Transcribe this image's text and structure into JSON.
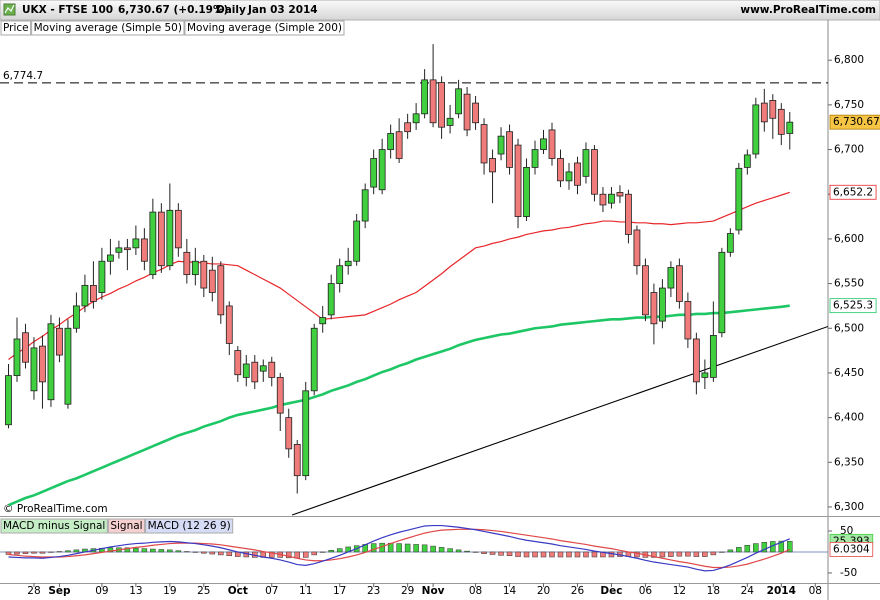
{
  "chart_data": {
    "type": "candlestick",
    "header": {
      "symbol": "UKX - FTSE 100",
      "price": "6,730.67 (+0.19%)",
      "period": "Daily",
      "date": "Jan 03 2014",
      "site": "www.ProRealTime.com"
    },
    "watermark": "© ProRealTime.com",
    "categories": [
      null,
      null,
      null,
      "28",
      null,
      null,
      "Sep",
      null,
      null,
      null,
      null,
      "09",
      null,
      null,
      null,
      "13",
      null,
      null,
      null,
      "19",
      null,
      null,
      null,
      "25",
      null,
      null,
      null,
      "Oct",
      null,
      null,
      null,
      "07",
      null,
      null,
      null,
      "11",
      null,
      null,
      null,
      "17",
      null,
      null,
      null,
      "23",
      null,
      null,
      null,
      "29",
      null,
      null,
      "Nov",
      null,
      null,
      null,
      null,
      "08",
      null,
      null,
      null,
      "14",
      null,
      null,
      null,
      "20",
      null,
      null,
      null,
      "26",
      null,
      null,
      null,
      "Dec",
      null,
      null,
      null,
      "06",
      null,
      null,
      null,
      "12",
      null,
      null,
      null,
      "18",
      null,
      null,
      null,
      "24",
      null,
      null,
      null,
      "2014",
      null,
      null,
      null,
      "08"
    ],
    "xlim": [
      -1,
      96.5
    ],
    "ylim": [
      6291,
      6845
    ],
    "yticks": [
      {
        "value": 6300,
        "label": "6,300"
      },
      {
        "value": 6350,
        "label": "6,350"
      },
      {
        "value": 6400,
        "label": "6,400"
      },
      {
        "value": 6450,
        "label": "6,450"
      },
      {
        "value": 6500,
        "label": "6,500"
      },
      {
        "value": 6550,
        "label": "6,550"
      },
      {
        "value": 6600,
        "label": "6,600"
      },
      {
        "value": 6650,
        "label": "6,650"
      },
      {
        "value": 6700,
        "label": "6,700"
      },
      {
        "value": 6750,
        "label": "6,750"
      },
      {
        "value": 6800,
        "label": "6,800"
      }
    ],
    "price": {
      "name": "Price",
      "up_color": "#3fcf3f",
      "down_color": "#ef7b7b",
      "last_label": "6,730.67",
      "open": [
        6392,
        6447,
        6495,
        6430,
        6480,
        6420,
        6500,
        6415,
        6500,
        6525,
        6548,
        6540,
        6575,
        6585,
        6590,
        6590,
        6600,
        6560,
        6630,
        6570,
        6632,
        6585,
        6560,
        6575,
        6565,
        6570,
        6525,
        6475,
        6445,
        6462,
        6452,
        6462,
        6445,
        6400,
        6370,
        6335,
        6430,
        6505,
        6515,
        6550,
        6570,
        6575,
        6620,
        6658,
        6655,
        6700,
        6720,
        6730,
        6730,
        6740,
        6778,
        6775,
        6727,
        6740,
        6762,
        6752,
        6728,
        6690,
        6695,
        6720,
        6705,
        6625,
        6680,
        6700,
        6722,
        6690,
        6665,
        6685,
        6670,
        6700,
        6650,
        6640,
        6652,
        6650,
        6610,
        6570,
        6540,
        6508,
        6545,
        6570,
        6530,
        6488,
        6445,
        6445,
        6495,
        6585,
        6610,
        6680,
        6695,
        6752,
        6755,
        6745,
        6718,
        null,
        null,
        null
      ],
      "high": [
        6460,
        6512,
        6505,
        6490,
        6492,
        6515,
        6512,
        6510,
        6540,
        6560,
        6575,
        6590,
        6600,
        6598,
        6600,
        6615,
        6612,
        6645,
        6640,
        6662,
        6640,
        6600,
        6590,
        6582,
        6580,
        6575,
        6530,
        6480,
        6470,
        6470,
        6465,
        6468,
        6450,
        6410,
        6375,
        6440,
        6505,
        6525,
        6560,
        6578,
        6590,
        6628,
        6662,
        6700,
        6712,
        6728,
        6735,
        6740,
        6752,
        6790,
        6818,
        6782,
        6750,
        6778,
        6770,
        6760,
        6735,
        6700,
        6725,
        6728,
        6712,
        6690,
        6710,
        6722,
        6730,
        6700,
        6685,
        6692,
        6708,
        6705,
        6658,
        6658,
        6660,
        6655,
        6615,
        6578,
        6550,
        6555,
        6575,
        6578,
        6540,
        6495,
        6465,
        6530,
        6590,
        6612,
        6685,
        6700,
        6758,
        6768,
        6762,
        6752,
        6742,
        null,
        null,
        null
      ],
      "low": [
        6388,
        6440,
        6455,
        6420,
        6410,
        6412,
        6462,
        6410,
        6495,
        6518,
        6522,
        6532,
        6560,
        6578,
        6565,
        6582,
        6565,
        6555,
        6562,
        6565,
        6580,
        6550,
        6548,
        6535,
        6530,
        6505,
        6470,
        6440,
        6435,
        6432,
        6440,
        6435,
        6385,
        6355,
        6315,
        6330,
        6425,
        6495,
        6510,
        6540,
        6560,
        6570,
        6612,
        6650,
        6650,
        6690,
        6685,
        6712,
        6722,
        6735,
        6725,
        6712,
        6718,
        6735,
        6715,
        6722,
        6672,
        6640,
        6688,
        6672,
        6612,
        6620,
        6672,
        6695,
        6682,
        6658,
        6655,
        6650,
        6662,
        6642,
        6630,
        6634,
        6640,
        6595,
        6560,
        6508,
        6482,
        6500,
        6535,
        6522,
        6478,
        6426,
        6432,
        6440,
        6490,
        6580,
        6605,
        6672,
        6690,
        6720,
        6712,
        6705,
        6700,
        null,
        null,
        null
      ],
      "close": [
        6447,
        6488,
        6462,
        6478,
        6440,
        6505,
        6470,
        6500,
        6525,
        6548,
        6530,
        6575,
        6582,
        6590,
        6588,
        6600,
        6575,
        6630,
        6570,
        6632,
        6590,
        6560,
        6575,
        6545,
        6540,
        6515,
        6483,
        6448,
        6460,
        6440,
        6458,
        6445,
        6405,
        6365,
        6335,
        6430,
        6500,
        6512,
        6550,
        6570,
        6575,
        6620,
        6655,
        6690,
        6700,
        6718,
        6690,
        6720,
        6740,
        6778,
        6730,
        6725,
        6735,
        6768,
        6722,
        6730,
        6685,
        6675,
        6715,
        6680,
        6625,
        6680,
        6700,
        6712,
        6690,
        6665,
        6675,
        6660,
        6700,
        6650,
        6638,
        6650,
        6648,
        6605,
        6570,
        6515,
        6505,
        6545,
        6568,
        6530,
        6488,
        6440,
        6450,
        6492,
        6585,
        6606,
        6679,
        6694,
        6750,
        6731,
        6735,
        6717,
        6730.67,
        null,
        null,
        null
      ]
    },
    "series": [
      {
        "name": "Moving average (Simple 50)",
        "color": "#e8262a",
        "width": 1.2,
        "last_label": "6,652.2",
        "values": [
          6465,
          6472,
          6478,
          6485,
          6491,
          6498,
          6504,
          6511,
          6517,
          6524,
          6530,
          6535,
          6539,
          6544,
          6548,
          6553,
          6557,
          6562,
          6566,
          6571,
          6575,
          6574,
          6574,
          6573,
          6572,
          6572,
          6571,
          6570,
          6565,
          6560,
          6555,
          6550,
          6545,
          6538,
          6531,
          6524,
          6517,
          6510,
          6511,
          6512,
          6513,
          6514,
          6515,
          6519,
          6523,
          6527,
          6532,
          6536,
          6540,
          6547,
          6554,
          6561,
          6569,
          6576,
          6583,
          6590,
          6592,
          6595,
          6597,
          6600,
          6602,
          6605,
          6607,
          6609,
          6610,
          6612,
          6613,
          6615,
          6617,
          6618,
          6620,
          6620,
          6619,
          6619,
          6618,
          6618,
          6617,
          6617,
          6616,
          6617,
          6618,
          6618,
          6619,
          6620,
          6624,
          6628,
          6632,
          6636,
          6640,
          6643,
          6646,
          6649,
          6652.2,
          null,
          null,
          null
        ]
      },
      {
        "name": "Moving average (Simple 200)",
        "color": "#1ec765",
        "width": 2.6,
        "last_label": "6,525.3",
        "values": [
          6302,
          6306,
          6310,
          6313,
          6317,
          6321,
          6325,
          6329,
          6332,
          6336,
          6340,
          6344,
          6348,
          6352,
          6356,
          6360,
          6364,
          6368,
          6372,
          6376,
          6380,
          6383,
          6386,
          6390,
          6393,
          6396,
          6400,
          6403,
          6405,
          6407,
          6409,
          6411,
          6414,
          6416,
          6418,
          6420,
          6423,
          6426,
          6430,
          6433,
          6436,
          6440,
          6443,
          6447,
          6451,
          6454,
          6458,
          6461,
          6465,
          6468,
          6471,
          6474,
          6477,
          6481,
          6484,
          6487,
          6489,
          6491,
          6493,
          6494,
          6496,
          6498,
          6500,
          6501,
          6502,
          6504,
          6505,
          6506,
          6507,
          6508,
          6509,
          6510,
          6510,
          6511,
          6512,
          6512,
          6513,
          6513,
          6514,
          6515,
          6515,
          6516,
          6516,
          6517,
          6517,
          6518,
          6519,
          6520,
          6521,
          6522,
          6523,
          6524,
          6525.3,
          null,
          null,
          null
        ]
      }
    ],
    "hline": {
      "value": 6774.7,
      "label": "6,774.7"
    },
    "trendline": {
      "x": [
        33.4,
        96.5
      ],
      "values": [
        6291,
        6502
      ]
    },
    "macd": {
      "ylim": [
        -74,
        81
      ],
      "yticks": [
        50,
        -50
      ],
      "series": [
        {
          "name": "MACD minus Signal",
          "type": "bar",
          "color": "#3fcf3f",
          "negative_color": "#ef7b7b",
          "values": [
            -6,
            -5,
            -4,
            -3,
            -3,
            -1,
            1,
            3,
            5,
            7,
            8,
            9,
            10,
            10,
            10,
            9,
            8,
            7,
            6,
            5,
            3,
            1,
            -1,
            -3,
            -5,
            -7,
            -9,
            -11,
            -12,
            -13,
            -13,
            -13,
            -13,
            -14,
            -15,
            -13,
            -7,
            -1,
            4,
            8,
            12,
            15,
            18,
            20,
            21,
            21,
            20,
            19,
            18,
            17,
            14,
            11,
            8,
            5,
            2,
            -1,
            -4,
            -6,
            -8,
            -9,
            -11,
            -12,
            -12,
            -12,
            -12,
            -12,
            -12,
            -12,
            -12,
            -12,
            -12,
            -12,
            -11,
            -11,
            -12,
            -13,
            -13,
            -12,
            -11,
            -10,
            -10,
            -11,
            -11,
            -7,
            -1,
            5,
            11,
            16,
            20,
            23,
            25,
            26,
            25.393,
            null,
            null,
            null
          ]
        },
        {
          "name": "Signal",
          "type": "line",
          "color": "#e04848",
          "values": [
            -6,
            -8,
            -10,
            -11,
            -12,
            -12,
            -12,
            -11,
            -9,
            -7,
            -4,
            -1,
            2,
            5,
            8,
            11,
            13,
            16,
            18,
            20,
            21,
            21,
            21,
            20,
            19,
            17,
            14,
            11,
            8,
            5,
            1,
            -2,
            -6,
            -10,
            -15,
            -19,
            -21,
            -21,
            -19,
            -16,
            -12,
            -7,
            -1,
            6,
            13,
            20,
            27,
            33,
            39,
            45,
            49,
            52,
            53,
            54,
            54,
            54,
            53,
            51,
            49,
            46,
            43,
            40,
            37,
            34,
            31,
            27,
            24,
            21,
            18,
            14,
            11,
            8,
            4,
            0,
            -3,
            -7,
            -11,
            -15,
            -19,
            -23,
            -26,
            -30,
            -34,
            -37,
            -37,
            -36,
            -33,
            -29,
            -23,
            -17,
            -10,
            -3,
            6.0304,
            null,
            null,
            null
          ]
        },
        {
          "name": "MACD (12 26 9)",
          "type": "line",
          "color": "#3a3ac4",
          "values": [
            -12,
            -13,
            -14,
            -14,
            -15,
            -13,
            -11,
            -8,
            -4,
            0,
            4,
            8,
            12,
            15,
            18,
            20,
            21,
            23,
            24,
            25,
            24,
            22,
            20,
            17,
            14,
            10,
            5,
            0,
            -4,
            -8,
            -12,
            -15,
            -19,
            -24,
            -30,
            -32,
            -28,
            -22,
            -15,
            -8,
            0,
            8,
            17,
            26,
            34,
            41,
            47,
            52,
            57,
            62,
            63,
            63,
            61,
            59,
            56,
            53,
            49,
            45,
            41,
            37,
            32,
            28,
            25,
            22,
            19,
            15,
            12,
            9,
            6,
            2,
            -1,
            -4,
            -7,
            -11,
            -15,
            -20,
            -24,
            -27,
            -30,
            -33,
            -36,
            -41,
            -45,
            -44,
            -38,
            -31,
            -22,
            -13,
            -3,
            6,
            15,
            23,
            31.4234,
            null,
            null,
            null
          ]
        }
      ]
    }
  }
}
